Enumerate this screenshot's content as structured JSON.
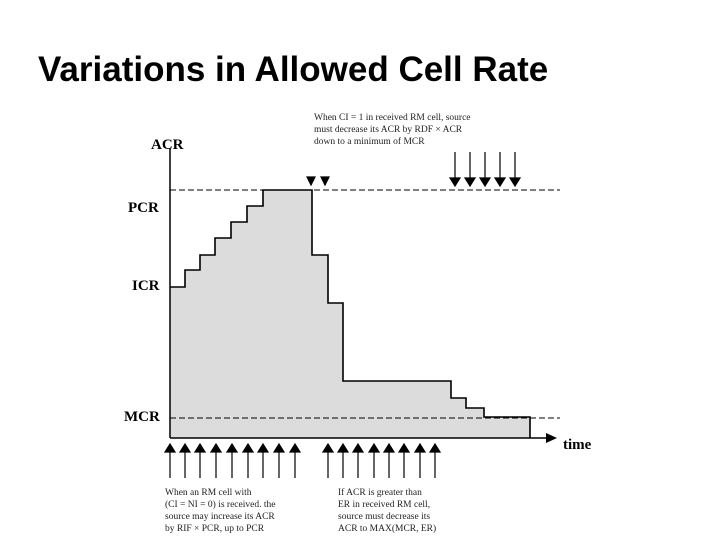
{
  "title": "Variations in Allowed Cell Rate",
  "diagram": {
    "y_axis_label": "ACR",
    "x_axis_label": "time",
    "levels": {
      "pcr": "PCR",
      "icr": "ICR",
      "mcr": "MCR"
    },
    "annotations": {
      "top": [
        "When CI = 1 in received RM cell, source",
        "must decrease its ACR by RDF × ACR",
        "down to a minimum of MCR"
      ],
      "bottom_left": [
        "When an RM cell with",
        "(CI = NI = 0) is received. the",
        "source may increase its ACR",
        "by RIF × PCR, up to PCR"
      ],
      "bottom_right": [
        "If ACR is greater than",
        "ER in received RM cell,",
        "source must decrease its",
        "ACR to MAX(MCR, ER)"
      ]
    }
  },
  "colors": {
    "fill": "#dcdcdc",
    "line": "#000000",
    "dashed": "#000000"
  }
}
